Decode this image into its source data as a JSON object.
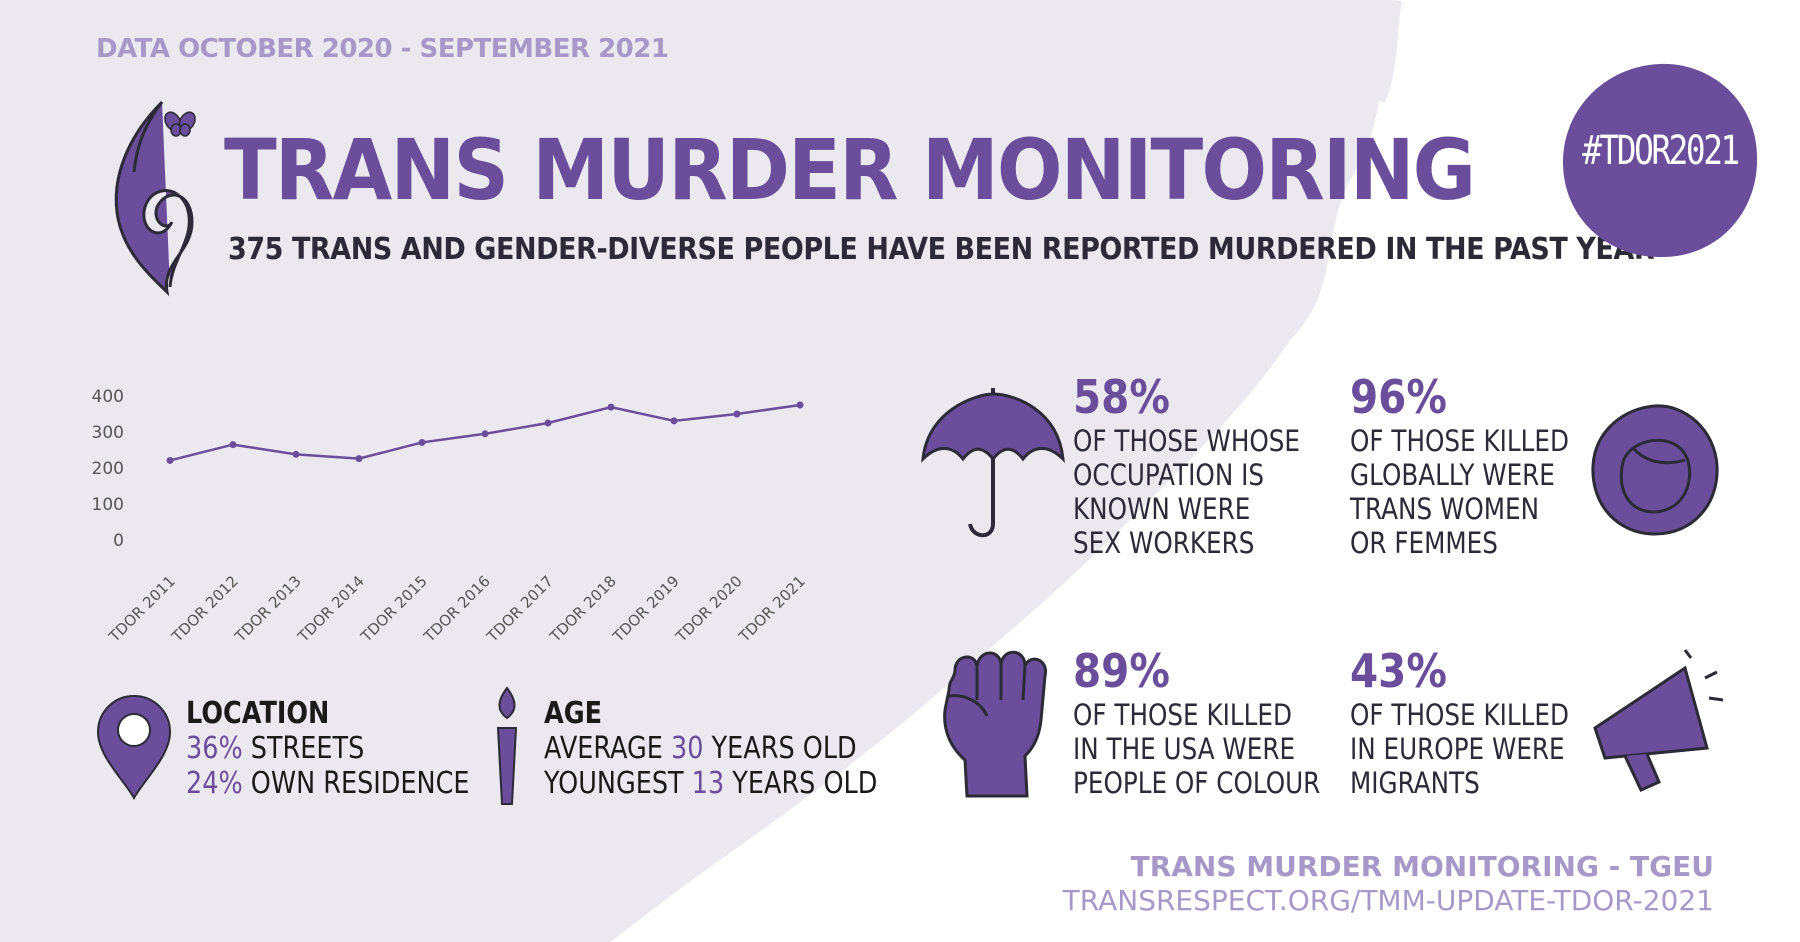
{
  "header": {
    "date_range": "DATA OCTOBER 2020 - SEPTEMBER 2021",
    "title": "TRANS MURDER MONITORING",
    "subtitle": "375 TRANS AND GENDER-DIVERSE PEOPLE HAVE BEEN REPORTED MURDERED IN THE PAST YEAR"
  },
  "hashtag": "#TDOR2021",
  "colors": {
    "accent": "#6a4e9b",
    "accent_light": "#a699c9",
    "background_left": "#ebe8f0",
    "text_dark": "#2c2a36"
  },
  "chart_data": {
    "type": "line",
    "categories": [
      "TDOR 2011",
      "TDOR 2012",
      "TDOR 2013",
      "TDOR 2014",
      "TDOR 2015",
      "TDOR 2016",
      "TDOR 2017",
      "TDOR 2018",
      "TDOR 2019",
      "TDOR 2020",
      "TDOR 2021"
    ],
    "values": [
      221,
      265,
      238,
      226,
      271,
      295,
      325,
      369,
      331,
      350,
      375
    ],
    "yticks": [
      0,
      100,
      200,
      300,
      400
    ],
    "ylim": [
      0,
      400
    ],
    "title": "",
    "xlabel": "",
    "ylabel": "",
    "grid": false,
    "line_color": "#6a4e9b"
  },
  "stats": [
    {
      "pct": "58%",
      "lines": [
        "OF THOSE WHOSE",
        "OCCUPATION IS",
        "KNOWN WERE",
        "SEX WORKERS"
      ],
      "icon": "umbrella-icon"
    },
    {
      "pct": "96%",
      "lines": [
        "OF THOSE KILLED",
        "GLOBALLY WERE",
        "TRANS WOMEN",
        "OR FEMMES"
      ],
      "icon": "woman-head-icon"
    },
    {
      "pct": "89%",
      "lines": [
        "OF THOSE KILLED",
        "IN THE USA WERE",
        "PEOPLE OF COLOUR"
      ],
      "icon": "raised-fist-icon"
    },
    {
      "pct": "43%",
      "lines": [
        "OF THOSE KILLED",
        "IN EUROPE WERE",
        "MIGRANTS"
      ],
      "icon": "megaphone-icon"
    }
  ],
  "location": {
    "heading": "LOCATION",
    "streets_pct": "36%",
    "streets_label": " STREETS",
    "residence_pct": "24%",
    "residence_label": " OWN RESIDENCE",
    "icon": "map-pin-icon"
  },
  "age": {
    "heading": "AGE",
    "avg_prefix": "AVERAGE ",
    "avg_value": "30",
    "avg_suffix": " YEARS OLD",
    "young_prefix": "YOUNGEST ",
    "young_value": "13",
    "young_suffix": " YEARS OLD",
    "icon": "candle-icon"
  },
  "footer": {
    "org": "TRANS MURDER MONITORING - TGEU",
    "url": "TRANSRESPECT.ORG/TMM-UPDATE-TDOR-2021"
  }
}
